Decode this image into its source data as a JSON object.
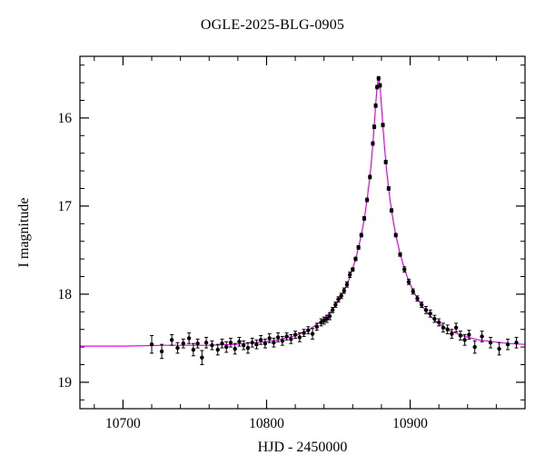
{
  "chart_data": {
    "type": "scatter",
    "title": "OGLE-2025-BLG-0905",
    "xlabel": "HJD - 2450000",
    "ylabel": "I magnitude",
    "xlim": [
      10670,
      10980
    ],
    "ylim": [
      15.3,
      19.3
    ],
    "y_axis_inverted": true,
    "x_major_ticks": [
      10700,
      10800,
      10900
    ],
    "x_minor_step": 20,
    "y_major_ticks": [
      16,
      17,
      18,
      19
    ],
    "y_minor_step": 0.2,
    "curve_color": "#e800e8",
    "point_color": "#000000",
    "frame_color": "#000000",
    "model_curve": [
      [
        10670,
        18.59
      ],
      [
        10700,
        18.59
      ],
      [
        10730,
        18.58
      ],
      [
        10760,
        18.58
      ],
      [
        10778,
        18.57
      ],
      [
        10798,
        18.54
      ],
      [
        10808,
        18.52
      ],
      [
        10818,
        18.48
      ],
      [
        10828,
        18.42
      ],
      [
        10838,
        18.31
      ],
      [
        10843,
        18.23
      ],
      [
        10848,
        18.13
      ],
      [
        10853,
        17.99
      ],
      [
        10857,
        17.85
      ],
      [
        10860,
        17.71
      ],
      [
        10863,
        17.54
      ],
      [
        10866,
        17.33
      ],
      [
        10868,
        17.15
      ],
      [
        10870,
        16.93
      ],
      [
        10872,
        16.66
      ],
      [
        10873,
        16.49
      ],
      [
        10874,
        16.3
      ],
      [
        10875,
        16.09
      ],
      [
        10876,
        15.85
      ],
      [
        10877,
        15.64
      ],
      [
        10878,
        15.55
      ],
      [
        10879,
        15.64
      ],
      [
        10880,
        15.85
      ],
      [
        10881,
        16.09
      ],
      [
        10882,
        16.3
      ],
      [
        10883,
        16.49
      ],
      [
        10884,
        16.66
      ],
      [
        10886,
        16.93
      ],
      [
        10888,
        17.15
      ],
      [
        10890,
        17.33
      ],
      [
        10893,
        17.54
      ],
      [
        10896,
        17.71
      ],
      [
        10899,
        17.85
      ],
      [
        10903,
        17.99
      ],
      [
        10908,
        18.13
      ],
      [
        10913,
        18.23
      ],
      [
        10918,
        18.31
      ],
      [
        10928,
        18.42
      ],
      [
        10938,
        18.48
      ],
      [
        10948,
        18.52
      ],
      [
        10958,
        18.54
      ],
      [
        10968,
        18.56
      ],
      [
        10980,
        18.57
      ]
    ],
    "points": [
      [
        10720,
        18.57,
        0.1
      ],
      [
        10727,
        18.65,
        0.08
      ],
      [
        10734,
        18.52,
        0.06
      ],
      [
        10738,
        18.61,
        0.06
      ],
      [
        10742,
        18.56,
        0.05
      ],
      [
        10746,
        18.5,
        0.06
      ],
      [
        10749,
        18.63,
        0.07
      ],
      [
        10752,
        18.56,
        0.05
      ],
      [
        10755,
        18.72,
        0.08
      ],
      [
        10758,
        18.55,
        0.06
      ],
      [
        10762,
        18.58,
        0.05
      ],
      [
        10766,
        18.63,
        0.06
      ],
      [
        10769,
        18.56,
        0.05
      ],
      [
        10772,
        18.6,
        0.06
      ],
      [
        10775,
        18.55,
        0.05
      ],
      [
        10778,
        18.62,
        0.06
      ],
      [
        10781,
        18.54,
        0.05
      ],
      [
        10784,
        18.58,
        0.05
      ],
      [
        10787,
        18.61,
        0.06
      ],
      [
        10790,
        18.55,
        0.05
      ],
      [
        10793,
        18.57,
        0.05
      ],
      [
        10796,
        18.52,
        0.05
      ],
      [
        10799,
        18.56,
        0.05
      ],
      [
        10802,
        18.5,
        0.05
      ],
      [
        10805,
        18.55,
        0.05
      ],
      [
        10808,
        18.49,
        0.05
      ],
      [
        10811,
        18.53,
        0.05
      ],
      [
        10814,
        18.48,
        0.04
      ],
      [
        10817,
        18.51,
        0.05
      ],
      [
        10820,
        18.46,
        0.04
      ],
      [
        10823,
        18.49,
        0.05
      ],
      [
        10826,
        18.44,
        0.04
      ],
      [
        10829,
        18.41,
        0.04
      ],
      [
        10832,
        18.45,
        0.06
      ],
      [
        10835,
        18.37,
        0.04
      ],
      [
        10838,
        18.32,
        0.04
      ],
      [
        10840,
        18.3,
        0.04
      ],
      [
        10842,
        18.28,
        0.04
      ],
      [
        10844,
        18.25,
        0.04
      ],
      [
        10846,
        18.18,
        0.03
      ],
      [
        10848,
        18.12,
        0.03
      ],
      [
        10850,
        18.06,
        0.03
      ],
      [
        10852,
        18.02,
        0.03
      ],
      [
        10854,
        17.96,
        0.03
      ],
      [
        10856,
        17.89,
        0.03
      ],
      [
        10858,
        17.78,
        0.03
      ],
      [
        10860,
        17.72,
        0.02
      ],
      [
        10862,
        17.6,
        0.02
      ],
      [
        10864,
        17.47,
        0.02
      ],
      [
        10866,
        17.33,
        0.02
      ],
      [
        10868,
        17.14,
        0.02
      ],
      [
        10870,
        16.93,
        0.02
      ],
      [
        10872,
        16.67,
        0.02
      ],
      [
        10874,
        16.29,
        0.02
      ],
      [
        10875,
        16.1,
        0.02
      ],
      [
        10876,
        15.86,
        0.02
      ],
      [
        10877,
        15.65,
        0.02
      ],
      [
        10878,
        15.55,
        0.02
      ],
      [
        10879,
        15.63,
        0.02
      ],
      [
        10881,
        16.08,
        0.02
      ],
      [
        10883,
        16.5,
        0.02
      ],
      [
        10885,
        16.8,
        0.02
      ],
      [
        10887,
        17.05,
        0.02
      ],
      [
        10890,
        17.33,
        0.02
      ],
      [
        10893,
        17.55,
        0.02
      ],
      [
        10896,
        17.72,
        0.03
      ],
      [
        10899,
        17.86,
        0.03
      ],
      [
        10902,
        17.97,
        0.03
      ],
      [
        10905,
        18.05,
        0.03
      ],
      [
        10908,
        18.12,
        0.03
      ],
      [
        10911,
        18.18,
        0.04
      ],
      [
        10914,
        18.22,
        0.04
      ],
      [
        10917,
        18.28,
        0.04
      ],
      [
        10920,
        18.32,
        0.04
      ],
      [
        10923,
        18.38,
        0.05
      ],
      [
        10926,
        18.4,
        0.05
      ],
      [
        10929,
        18.45,
        0.05
      ],
      [
        10932,
        18.38,
        0.05
      ],
      [
        10935,
        18.47,
        0.05
      ],
      [
        10938,
        18.52,
        0.06
      ],
      [
        10941,
        18.46,
        0.05
      ],
      [
        10945,
        18.6,
        0.07
      ],
      [
        10950,
        18.48,
        0.06
      ],
      [
        10956,
        18.55,
        0.06
      ],
      [
        10962,
        18.62,
        0.07
      ],
      [
        10968,
        18.57,
        0.06
      ],
      [
        10974,
        18.55,
        0.06
      ]
    ]
  }
}
